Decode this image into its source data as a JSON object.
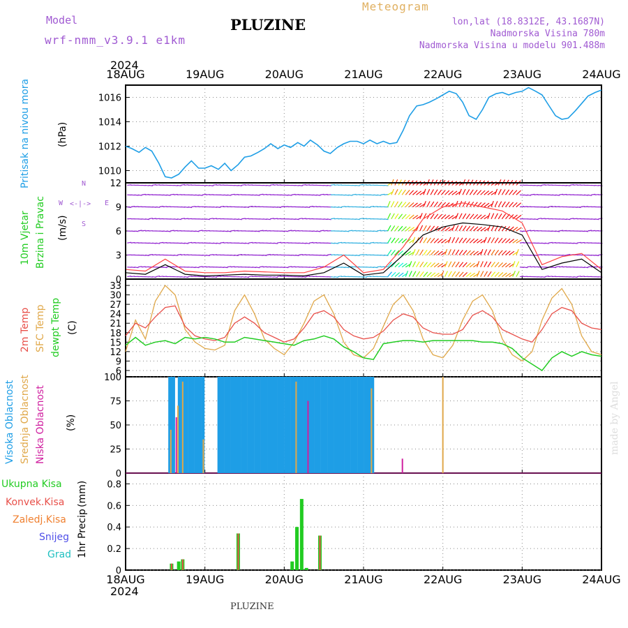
{
  "header": {
    "model_label": "Model",
    "model_name": "wrf-nmm_v3.9.1 e1km",
    "title": "PLUZINE",
    "meteogram_label": "Meteogram",
    "lonlat": "lon,lat (18.8312E, 43.1687N)",
    "altitude": "Nadmorska Visina 780m",
    "model_altitude": "Nadmorska Visina u modelu 901.488m",
    "year_top": "2024",
    "year_bottom": "2024",
    "footer": "PLUZINE",
    "credit": "made by Angel"
  },
  "colors": {
    "pressure": "#1e9ee6",
    "temp2m": "#e8504a",
    "sfctemp": "#e0a84a",
    "dewpt": "#22cc22",
    "high_cloud": "#1e9ee6",
    "mid_cloud": "#e0a84a",
    "low_cloud": "#d020a0",
    "precip_total": "#22cc22",
    "precip_conv": "#e8504a",
    "precip_frozen": "#f08030",
    "snow": "#5050e8",
    "graupel": "#20c0c0",
    "wind_purple": "#9020d0",
    "wind_gust": "#ff4040"
  },
  "chart_data": [
    {
      "type": "line",
      "panel": "pressure",
      "ylabel_main": "Pritisak na nivou mora",
      "unit": "(hPa)",
      "x_ticks": [
        "18AUG",
        "19AUG",
        "20AUG",
        "21AUG",
        "22AUG",
        "23AUG",
        "24AUG"
      ],
      "ylim": [
        1009,
        1017
      ],
      "y_ticks": [
        1010,
        1012,
        1014,
        1016
      ],
      "x_days": [
        0,
        0.08,
        0.17,
        0.25,
        0.33,
        0.42,
        0.5,
        0.58,
        0.67,
        0.75,
        0.83,
        0.92,
        1,
        1.08,
        1.17,
        1.25,
        1.33,
        1.42,
        1.5,
        1.58,
        1.67,
        1.75,
        1.83,
        1.92,
        2,
        2.08,
        2.17,
        2.25,
        2.33,
        2.42,
        2.5,
        2.58,
        2.67,
        2.75,
        2.83,
        2.92,
        3,
        3.08,
        3.17,
        3.25,
        3.33,
        3.42,
        3.5,
        3.58,
        3.67,
        3.75,
        3.83,
        3.92,
        4,
        4.08,
        4.17,
        4.25,
        4.33,
        4.42,
        4.5,
        4.58,
        4.67,
        4.75,
        4.83,
        4.92,
        5,
        5.08,
        5.17,
        5.25,
        5.33,
        5.42,
        5.5,
        5.58,
        5.67,
        5.75,
        5.83,
        5.92,
        6
      ],
      "values": [
        1012,
        1011.8,
        1011.5,
        1011.9,
        1011.6,
        1010.6,
        1009.5,
        1009.4,
        1009.7,
        1010.3,
        1010.8,
        1010.2,
        1010.2,
        1010.4,
        1010.1,
        1010.6,
        1010.0,
        1010.5,
        1011.1,
        1011.2,
        1011.5,
        1011.8,
        1012.2,
        1011.8,
        1012.1,
        1011.9,
        1012.3,
        1012.0,
        1012.5,
        1012.1,
        1011.6,
        1011.4,
        1011.9,
        1012.2,
        1012.4,
        1012.4,
        1012.2,
        1012.5,
        1012.2,
        1012.4,
        1012.2,
        1012.3,
        1013.3,
        1014.5,
        1015.3,
        1015.4,
        1015.6,
        1015.9,
        1016.2,
        1016.5,
        1016.3,
        1015.6,
        1014.5,
        1014.2,
        1015.0,
        1016.0,
        1016.3,
        1016.4,
        1016.2,
        1016.4,
        1016.5,
        1016.8,
        1016.5,
        1016.2,
        1015.4,
        1014.5,
        1014.2,
        1014.3,
        1014.9,
        1015.5,
        1016.1,
        1016.4,
        1016.6
      ]
    },
    {
      "type": "line",
      "panel": "wind",
      "ylabel_main": "10m Vjetar",
      "ylabel_sub": "Brzina i Pravac",
      "unit": "(m/s)",
      "compass": {
        "n": "N",
        "s": "S",
        "e": "E",
        "w": "W"
      },
      "ylim": [
        0,
        12
      ],
      "y_ticks": [
        0,
        3,
        6,
        9,
        12
      ],
      "x_days": [
        0,
        0.25,
        0.5,
        0.75,
        1,
        1.25,
        1.5,
        1.75,
        2,
        2.25,
        2.5,
        2.75,
        3,
        3.25,
        3.5,
        3.75,
        4,
        4.25,
        4.5,
        4.75,
        5,
        5.25,
        5.5,
        5.75,
        6
      ],
      "series": [
        {
          "name": "wind_speed",
          "values": [
            0.8,
            0.6,
            1.8,
            0.6,
            0.4,
            0.5,
            0.6,
            0.5,
            0.5,
            0.4,
            0.8,
            2.0,
            0.5,
            0.8,
            3.0,
            5.5,
            6.5,
            7.0,
            6.8,
            6.5,
            5.5,
            1.2,
            2.0,
            2.5,
            0.8
          ]
        },
        {
          "name": "gust",
          "values": [
            1.2,
            1.0,
            2.5,
            1.0,
            0.8,
            0.8,
            1.0,
            0.9,
            0.8,
            0.8,
            1.5,
            3.0,
            0.8,
            1.2,
            4.0,
            7.5,
            9.0,
            9.5,
            9.0,
            8.5,
            7.0,
            1.8,
            2.8,
            3.2,
            1.2
          ]
        }
      ]
    },
    {
      "type": "line",
      "panel": "temperature",
      "ylabel_2m": "2m Temp",
      "ylabel_sfc": "SFC Temp",
      "ylabel_dew": "dewpt Temp",
      "unit": "(C)",
      "ylim": [
        4,
        35
      ],
      "y_ticks": [
        6,
        9,
        12,
        15,
        18,
        21,
        24,
        27,
        30,
        33
      ],
      "x_days": [
        0,
        0.125,
        0.25,
        0.375,
        0.5,
        0.625,
        0.75,
        0.875,
        1,
        1.125,
        1.25,
        1.375,
        1.5,
        1.625,
        1.75,
        1.875,
        2,
        2.125,
        2.25,
        2.375,
        2.5,
        2.625,
        2.75,
        2.875,
        3,
        3.125,
        3.25,
        3.375,
        3.5,
        3.625,
        3.75,
        3.875,
        4,
        4.125,
        4.25,
        4.375,
        4.5,
        4.625,
        4.75,
        4.875,
        5,
        5.125,
        5.25,
        5.375,
        5.5,
        5.625,
        5.75,
        5.875,
        6
      ],
      "series": [
        {
          "name": "2m",
          "values": [
            17,
            21,
            19.5,
            23,
            26,
            26.5,
            20,
            17,
            16,
            15.5,
            16.5,
            21,
            23,
            21,
            18,
            16.5,
            15,
            16,
            19.5,
            24,
            25,
            23,
            19,
            17,
            16,
            16.5,
            18.5,
            22,
            24,
            23,
            19.5,
            18,
            17.5,
            17.5,
            19,
            23.5,
            25,
            23,
            19,
            17.5,
            16,
            15,
            19,
            24,
            26,
            25,
            21,
            19.5,
            19
          ]
        },
        {
          "name": "SFC",
          "values": [
            12,
            22,
            16,
            28,
            33,
            30,
            19,
            15,
            13,
            12.5,
            14,
            25,
            30,
            24,
            16,
            13,
            11,
            15,
            21,
            28,
            30,
            24,
            15,
            11,
            10,
            13,
            20,
            27,
            30,
            25,
            16,
            11,
            10,
            14,
            22,
            28,
            30,
            25,
            16,
            11,
            9,
            12,
            22,
            29,
            32,
            27,
            17,
            12,
            11
          ]
        },
        {
          "name": "dewpt",
          "values": [
            14,
            16.5,
            14,
            15,
            15.5,
            14.5,
            16.5,
            16,
            16.5,
            16,
            15,
            15,
            16.5,
            16,
            15.5,
            15,
            14.5,
            14,
            15.5,
            16,
            17,
            16,
            13.5,
            12,
            10,
            9.5,
            14.5,
            15,
            15.5,
            15.5,
            15,
            15.5,
            15.5,
            15.5,
            15.5,
            15.5,
            15,
            15,
            14.5,
            13,
            10,
            8,
            6,
            10,
            12,
            10.5,
            12,
            11,
            10.5
          ]
        }
      ]
    },
    {
      "type": "bar",
      "panel": "clouds",
      "ylabel_high": "Visoka Oblacnost",
      "ylabel_mid": "Srednja Oblacnost",
      "ylabel_low": "Niska Oblacnost",
      "unit": "(%)",
      "ylim": [
        0,
        100
      ],
      "y_ticks": [
        0,
        25,
        50,
        75,
        100
      ],
      "high_ranges": [
        [
          0.56,
          0.62
        ],
        [
          0.68,
          0.98
        ],
        [
          1.18,
          3.14
        ]
      ],
      "high_values": [
        100,
        100,
        100
      ],
      "mid_bars": [
        {
          "x": 0.57,
          "v": 45
        },
        {
          "x": 0.66,
          "v": 70
        },
        {
          "x": 0.72,
          "v": 95
        },
        {
          "x": 0.98,
          "v": 35
        },
        {
          "x": 2.15,
          "v": 95
        },
        {
          "x": 3.1,
          "v": 88
        },
        {
          "x": 4.0,
          "v": 100
        }
      ],
      "low_bars": [
        {
          "x": 0.64,
          "v": 58
        },
        {
          "x": 2.3,
          "v": 75
        },
        {
          "x": 3.49,
          "v": 15
        }
      ]
    },
    {
      "type": "bar",
      "panel": "precip",
      "ylabel_total": "Ukupna Kisa",
      "ylabel_conv": "Konvek.Kisa",
      "ylabel_frozen": "Zaledj.Kisa",
      "ylabel_snow": "Snijeg",
      "ylabel_graupel": "Grad",
      "ylabel_axis": "1hr Precip",
      "unit": "(mm)",
      "ylim": [
        0,
        0.9
      ],
      "y_ticks": [
        0,
        0.2,
        0.4,
        0.6,
        0.8
      ],
      "total": [
        {
          "x": 0.58,
          "v": 0.06
        },
        {
          "x": 0.67,
          "v": 0.08
        },
        {
          "x": 0.72,
          "v": 0.1
        },
        {
          "x": 1.42,
          "v": 0.34
        },
        {
          "x": 2.1,
          "v": 0.08
        },
        {
          "x": 2.16,
          "v": 0.4
        },
        {
          "x": 2.22,
          "v": 0.66
        },
        {
          "x": 2.28,
          "v": 0.02
        },
        {
          "x": 2.45,
          "v": 0.32
        }
      ],
      "conv": [
        {
          "x": 0.58,
          "v": 0.06
        },
        {
          "x": 0.72,
          "v": 0.1
        },
        {
          "x": 1.42,
          "v": 0.34
        },
        {
          "x": 2.45,
          "v": 0.32
        }
      ]
    }
  ]
}
